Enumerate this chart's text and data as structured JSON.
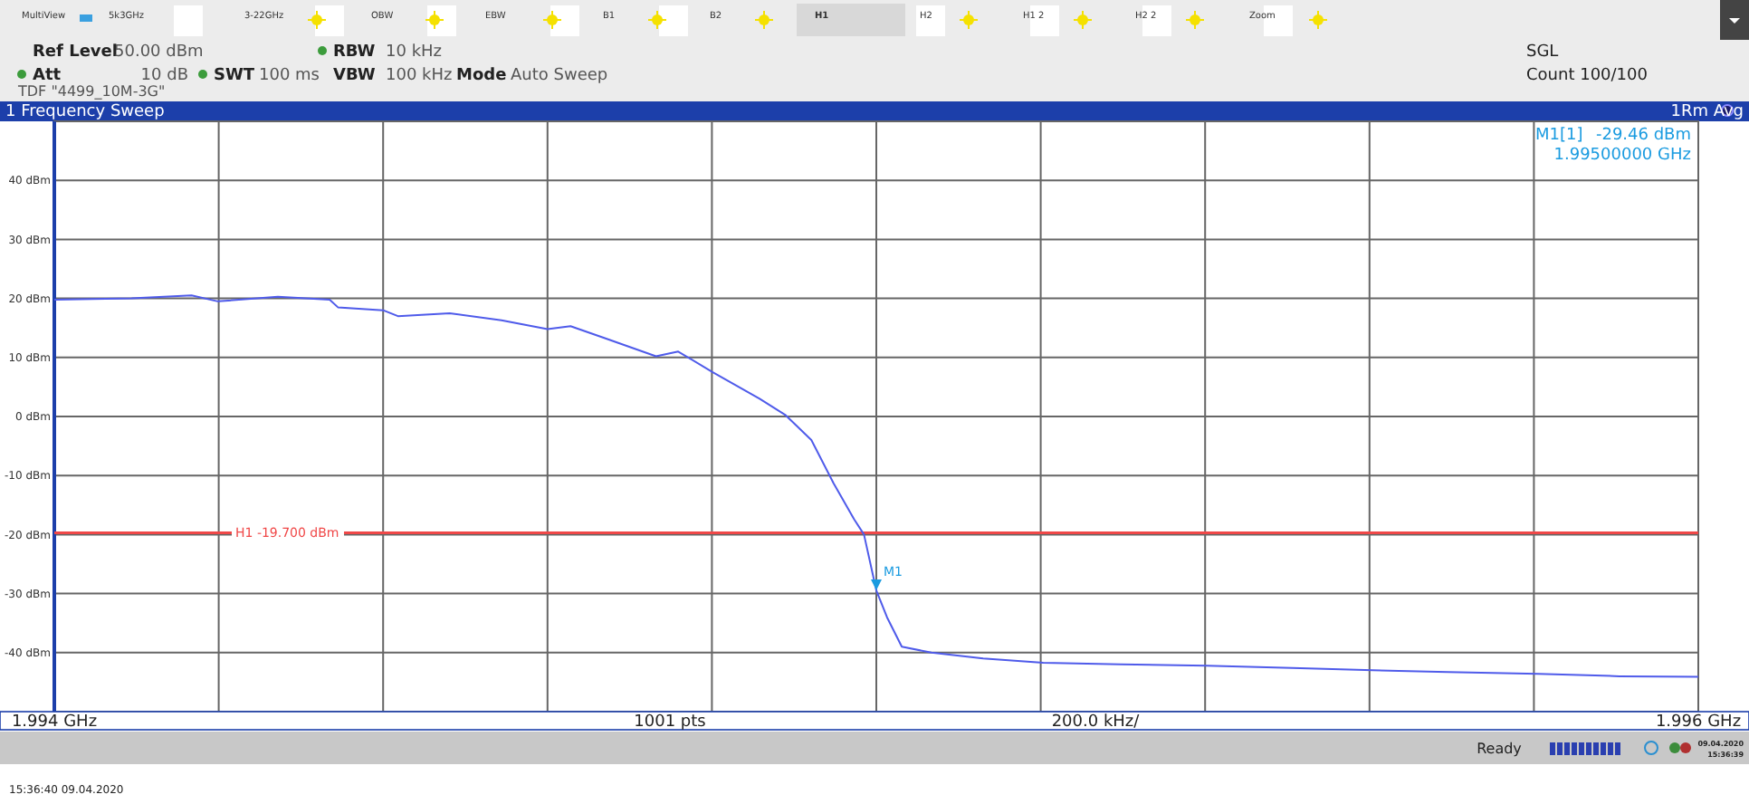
{
  "chart_data": {
    "type": "line",
    "title": "1 Frequency Sweep",
    "x": [
      1.994,
      1.994094,
      1.994167,
      1.994199,
      1.994272,
      1.994335,
      1.994345,
      1.9944,
      1.994418,
      1.994481,
      1.994544,
      1.9946,
      1.994628,
      1.994669,
      1.994732,
      1.994759,
      1.994801,
      1.994858,
      1.994889,
      1.994921,
      1.994948,
      1.994973,
      1.994985,
      1.995,
      1.995013,
      1.995031,
      1.995067,
      1.99513,
      1.995203,
      1.995297,
      1.995402,
      1.995506,
      1.995604,
      1.995695,
      1.995805,
      1.995904,
      1.996
    ],
    "series": [
      {
        "color": "#4f5bea",
        "values": [
          19.8,
          20,
          20.5,
          19.5,
          20.3,
          19.8,
          18.5,
          18,
          17,
          17.5,
          16.3,
          14.8,
          15.3,
          13.3,
          10.2,
          11,
          7.5,
          3,
          0.3,
          -4,
          -11.3,
          -17.4,
          -20,
          -29.46,
          -34,
          -39,
          -40,
          -41,
          -41.7,
          -42,
          -42.2,
          -42.6,
          -43,
          -43.3,
          -43.6,
          -44,
          -44.1
        ]
      }
    ],
    "xlim": [
      1.994,
      1.996
    ],
    "xticks": [
      {
        "value": 1.994,
        "label": "1.994 GHz"
      },
      {
        "value": 1.9942,
        "label": null
      },
      {
        "value": 1.9944,
        "label": null
      },
      {
        "value": 1.9946,
        "label": null
      },
      {
        "value": 1.9948,
        "label": null
      },
      {
        "value": 1.995,
        "label": null
      },
      {
        "value": 1.9952,
        "label": null
      },
      {
        "value": 1.9954,
        "label": null
      },
      {
        "value": 1.9956,
        "label": null
      },
      {
        "value": 1.9958,
        "label": null
      },
      {
        "value": 1.996,
        "label": "1.996 GHz"
      }
    ],
    "ylim": [
      -50,
      50
    ],
    "yticks": [
      {
        "value": 40,
        "label": "40 dBm"
      },
      {
        "value": 30,
        "label": "30 dBm"
      },
      {
        "value": 20,
        "label": "20 dBm"
      },
      {
        "value": 10,
        "label": "10 dBm"
      },
      {
        "value": 0,
        "label": "0 dBm"
      },
      {
        "value": -10,
        "label": "-10 dBm"
      },
      {
        "value": -20,
        "label": "-20 dBm"
      },
      {
        "value": -30,
        "label": "-30 dBm"
      },
      {
        "value": -40,
        "label": "-40 dBm"
      }
    ],
    "grid": true,
    "marker": "none",
    "line_style": "solid",
    "ref_lines": [
      {
        "axis": "y",
        "value": -19.7,
        "label": "H1 -19.700 dBm",
        "color": "#f04848"
      }
    ],
    "annotations": [
      "MultiView",
      "5k3GHz",
      "3-22GHz",
      "OBW",
      "EBW",
      "B1",
      "B2",
      "H1",
      "H2",
      "H1 2",
      "H2 2",
      "Zoom",
      "Ref Level",
      "50.00 dBm",
      "RBW",
      "10 kHz",
      "Att",
      "10 dB",
      "SWT",
      "100 ms",
      "VBW",
      "100 kHz",
      "Mode",
      "Auto Sweep",
      "TDF \"4499_10M-3G\"",
      "SGL",
      "Count 100/100",
      "1Rm Avg",
      "M1[1]",
      "-29.46 dBm",
      "1.99500000 GHz",
      "1001 pts",
      "200.0 kHz/",
      "Ready",
      "09.04.2020",
      "15:36:39",
      "15:36:40 09.04.2020",
      {
        "text": "M1",
        "x": 1.995,
        "y": -29.46
      }
    ]
  }
}
